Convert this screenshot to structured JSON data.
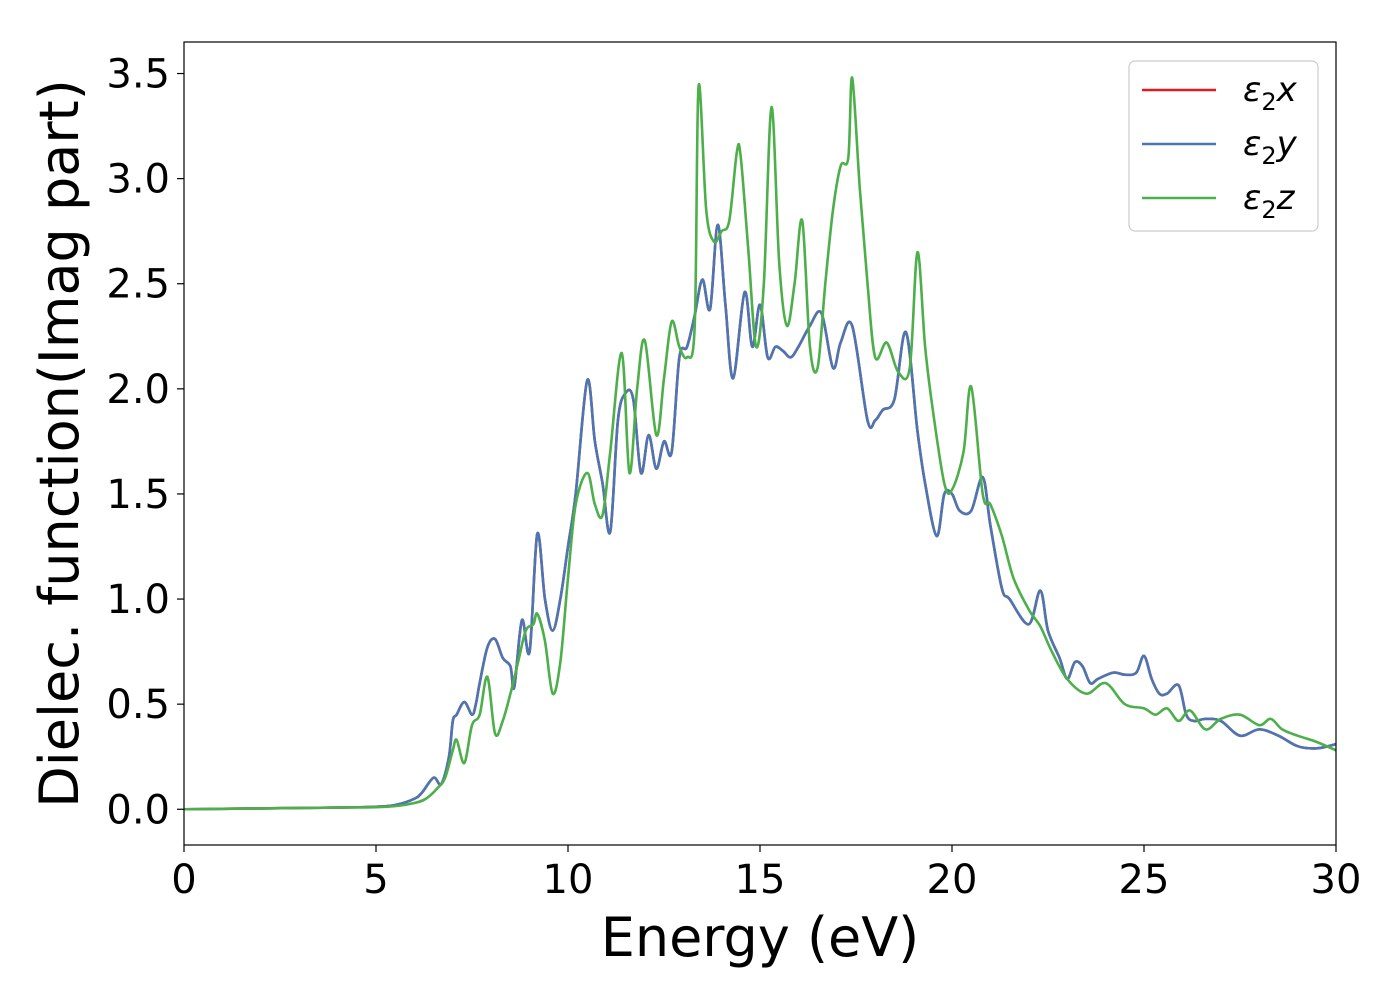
{
  "chart_data": {
    "type": "line",
    "title": "",
    "xlabel": "Energy (eV)",
    "ylabel": "Dielec. function(Imag part)",
    "xlim": [
      0,
      30
    ],
    "ylim": [
      -0.17,
      3.65
    ],
    "xticks": [
      0,
      5,
      10,
      15,
      20,
      25,
      30
    ],
    "xtick_labels": [
      "0",
      "5",
      "10",
      "15",
      "20",
      "25",
      "30"
    ],
    "yticks": [
      0.0,
      0.5,
      1.0,
      1.5,
      2.0,
      2.5,
      3.0,
      3.5
    ],
    "ytick_labels": [
      "0.0",
      "0.5",
      "1.0",
      "1.5",
      "2.0",
      "2.5",
      "3.0",
      "3.5"
    ],
    "grid": false,
    "legend_position": "top-right",
    "series": [
      {
        "key": "x",
        "name_base": "ε",
        "name_sub": "2",
        "name_suffix": "x",
        "color": "#e31a1c",
        "x": [
          0,
          1,
          2,
          3,
          4,
          5,
          5.5,
          6,
          6.2,
          6.5,
          6.7,
          6.9,
          7.0,
          7.1,
          7.3,
          7.5,
          7.6,
          7.7,
          7.9,
          8.1,
          8.3,
          8.5,
          8.6,
          8.8,
          9.0,
          9.2,
          9.4,
          9.6,
          9.8,
          10.0,
          10.2,
          10.5,
          10.7,
          10.9,
          11.1,
          11.3,
          11.5,
          11.7,
          11.9,
          12.1,
          12.3,
          12.5,
          12.7,
          12.9,
          13.1,
          13.3,
          13.5,
          13.7,
          13.9,
          14.1,
          14.3,
          14.6,
          14.8,
          15.0,
          15.2,
          15.4,
          15.6,
          15.8,
          16.0,
          16.3,
          16.6,
          16.9,
          17.1,
          17.4,
          17.8,
          18.0,
          18.2,
          18.5,
          18.8,
          19.1,
          19.3,
          19.6,
          19.8,
          20.0,
          20.2,
          20.5,
          20.8,
          21.0,
          21.3,
          21.5,
          22.0,
          22.3,
          22.5,
          22.8,
          23.0,
          23.2,
          23.4,
          23.6,
          23.8,
          24.2,
          24.5,
          24.8,
          25.0,
          25.2,
          25.4,
          25.6,
          25.9,
          26.1,
          26.3,
          26.6,
          27.0,
          27.5,
          28.0,
          28.5,
          29.0,
          29.5,
          30.0
        ],
        "y": [
          0.0,
          0.002,
          0.004,
          0.006,
          0.008,
          0.012,
          0.02,
          0.05,
          0.08,
          0.15,
          0.12,
          0.25,
          0.42,
          0.45,
          0.51,
          0.45,
          0.5,
          0.6,
          0.77,
          0.81,
          0.72,
          0.68,
          0.58,
          0.9,
          0.75,
          1.31,
          1.0,
          0.85,
          1.0,
          1.25,
          1.5,
          2.04,
          1.75,
          1.55,
          1.32,
          1.85,
          1.98,
          1.95,
          1.6,
          1.78,
          1.62,
          1.75,
          1.7,
          2.15,
          2.2,
          2.35,
          2.52,
          2.38,
          2.78,
          2.4,
          2.05,
          2.46,
          2.2,
          2.4,
          2.15,
          2.2,
          2.18,
          2.15,
          2.2,
          2.3,
          2.36,
          2.1,
          2.22,
          2.3,
          1.85,
          1.85,
          1.9,
          1.95,
          2.27,
          1.8,
          1.55,
          1.3,
          1.5,
          1.5,
          1.42,
          1.42,
          1.58,
          1.35,
          1.05,
          1.0,
          0.88,
          1.04,
          0.85,
          0.72,
          0.62,
          0.7,
          0.68,
          0.6,
          0.62,
          0.65,
          0.64,
          0.65,
          0.73,
          0.62,
          0.55,
          0.55,
          0.59,
          0.45,
          0.42,
          0.43,
          0.42,
          0.35,
          0.38,
          0.35,
          0.3,
          0.29,
          0.31
        ]
      },
      {
        "key": "y",
        "name_base": "ε",
        "name_sub": "2",
        "name_suffix": "y",
        "color": "#4a77b4",
        "x": [
          0,
          1,
          2,
          3,
          4,
          5,
          5.5,
          6,
          6.2,
          6.5,
          6.7,
          6.9,
          7.0,
          7.1,
          7.3,
          7.5,
          7.6,
          7.7,
          7.9,
          8.1,
          8.3,
          8.5,
          8.6,
          8.8,
          9.0,
          9.2,
          9.4,
          9.6,
          9.8,
          10.0,
          10.2,
          10.5,
          10.7,
          10.9,
          11.1,
          11.3,
          11.5,
          11.7,
          11.9,
          12.1,
          12.3,
          12.5,
          12.7,
          12.9,
          13.1,
          13.3,
          13.5,
          13.7,
          13.9,
          14.1,
          14.3,
          14.6,
          14.8,
          15.0,
          15.2,
          15.4,
          15.6,
          15.8,
          16.0,
          16.3,
          16.6,
          16.9,
          17.1,
          17.4,
          17.8,
          18.0,
          18.2,
          18.5,
          18.8,
          19.1,
          19.3,
          19.6,
          19.8,
          20.0,
          20.2,
          20.5,
          20.8,
          21.0,
          21.3,
          21.5,
          22.0,
          22.3,
          22.5,
          22.8,
          23.0,
          23.2,
          23.4,
          23.6,
          23.8,
          24.2,
          24.5,
          24.8,
          25.0,
          25.2,
          25.4,
          25.6,
          25.9,
          26.1,
          26.3,
          26.6,
          27.0,
          27.5,
          28.0,
          28.5,
          29.0,
          29.5,
          30.0
        ],
        "y": [
          0.0,
          0.002,
          0.004,
          0.006,
          0.008,
          0.012,
          0.02,
          0.05,
          0.08,
          0.15,
          0.12,
          0.25,
          0.42,
          0.45,
          0.51,
          0.45,
          0.5,
          0.6,
          0.77,
          0.81,
          0.72,
          0.68,
          0.58,
          0.9,
          0.75,
          1.31,
          1.0,
          0.85,
          1.0,
          1.25,
          1.5,
          2.04,
          1.75,
          1.55,
          1.32,
          1.85,
          1.98,
          1.95,
          1.6,
          1.78,
          1.62,
          1.75,
          1.7,
          2.15,
          2.2,
          2.35,
          2.52,
          2.38,
          2.78,
          2.4,
          2.05,
          2.46,
          2.2,
          2.4,
          2.15,
          2.2,
          2.18,
          2.15,
          2.2,
          2.3,
          2.36,
          2.1,
          2.22,
          2.3,
          1.85,
          1.85,
          1.9,
          1.95,
          2.27,
          1.8,
          1.55,
          1.3,
          1.5,
          1.5,
          1.42,
          1.42,
          1.58,
          1.35,
          1.05,
          1.0,
          0.88,
          1.04,
          0.85,
          0.72,
          0.62,
          0.7,
          0.68,
          0.6,
          0.62,
          0.65,
          0.64,
          0.65,
          0.73,
          0.62,
          0.55,
          0.55,
          0.59,
          0.45,
          0.42,
          0.43,
          0.42,
          0.35,
          0.38,
          0.35,
          0.3,
          0.29,
          0.31
        ]
      },
      {
        "key": "z",
        "name_base": "ε",
        "name_sub": "2",
        "name_suffix": "z",
        "color": "#4daf4a",
        "x": [
          0,
          1,
          2,
          3,
          4,
          5,
          5.5,
          6,
          6.3,
          6.6,
          6.8,
          7.0,
          7.1,
          7.3,
          7.5,
          7.7,
          7.9,
          8.1,
          8.3,
          8.5,
          8.7,
          8.9,
          9.1,
          9.2,
          9.4,
          9.6,
          9.8,
          10.0,
          10.2,
          10.5,
          10.7,
          10.9,
          11.1,
          11.4,
          11.6,
          11.8,
          12.0,
          12.3,
          12.5,
          12.7,
          12.9,
          13.1,
          13.3,
          13.4,
          13.6,
          13.8,
          14.0,
          14.2,
          14.4,
          14.5,
          14.7,
          14.9,
          15.1,
          15.3,
          15.5,
          15.7,
          15.9,
          16.1,
          16.3,
          16.5,
          16.7,
          16.9,
          17.1,
          17.3,
          17.4,
          17.6,
          17.8,
          18.0,
          18.3,
          18.6,
          18.9,
          19.1,
          19.3,
          19.5,
          19.8,
          20.0,
          20.3,
          20.5,
          20.8,
          21.0,
          21.3,
          21.6,
          22.0,
          22.3,
          22.6,
          23.0,
          23.5,
          24.0,
          24.5,
          25.0,
          25.3,
          25.6,
          25.9,
          26.2,
          26.6,
          27.0,
          27.5,
          28.0,
          28.3,
          28.6,
          29.0,
          29.5,
          30.0
        ],
        "y": [
          0.0,
          0.002,
          0.004,
          0.006,
          0.008,
          0.01,
          0.015,
          0.03,
          0.05,
          0.1,
          0.15,
          0.28,
          0.33,
          0.22,
          0.4,
          0.45,
          0.63,
          0.36,
          0.42,
          0.55,
          0.7,
          0.85,
          0.88,
          0.93,
          0.8,
          0.55,
          0.7,
          1.1,
          1.45,
          1.6,
          1.45,
          1.4,
          1.7,
          2.17,
          1.6,
          2.0,
          2.23,
          1.78,
          2.05,
          2.32,
          2.2,
          2.15,
          2.3,
          3.44,
          2.85,
          2.7,
          2.75,
          2.8,
          3.13,
          3.1,
          2.65,
          2.2,
          2.5,
          3.34,
          2.6,
          2.3,
          2.5,
          2.8,
          2.2,
          2.1,
          2.5,
          2.85,
          3.06,
          3.1,
          3.48,
          2.95,
          2.5,
          2.15,
          2.22,
          2.08,
          2.1,
          2.65,
          2.2,
          1.9,
          1.55,
          1.52,
          1.7,
          2.01,
          1.5,
          1.45,
          1.3,
          1.1,
          0.95,
          0.87,
          0.75,
          0.62,
          0.55,
          0.6,
          0.5,
          0.48,
          0.45,
          0.48,
          0.42,
          0.47,
          0.38,
          0.43,
          0.45,
          0.4,
          0.43,
          0.38,
          0.35,
          0.32,
          0.28
        ]
      }
    ]
  }
}
